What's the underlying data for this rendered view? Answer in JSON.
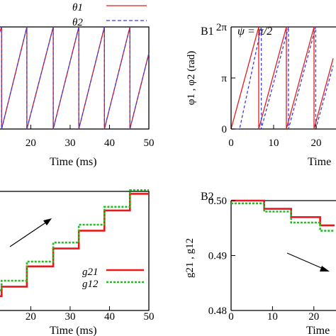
{
  "chart_data": [
    {
      "type": "line",
      "panel": "A1",
      "title": "",
      "xlabel": "Time (ms)",
      "ylabel": "",
      "xlim": [
        12,
        50
      ],
      "ylim": [
        0,
        6.2832
      ],
      "xticks": [
        20,
        30,
        40,
        50
      ],
      "legend": "top-right",
      "series": [
        {
          "name": "θ1",
          "color": "#e41a1c",
          "style": "solid",
          "x": [
            12,
            12.6,
            12.6,
            19,
            19,
            25.7,
            25.7,
            32.2,
            32.2,
            38.7,
            38.7,
            45.2,
            45.2,
            50
          ],
          "y": [
            5.9,
            6.2832,
            0,
            6.2832,
            0,
            6.2832,
            0,
            6.2832,
            0,
            6.2832,
            0,
            6.2832,
            0,
            4.66
          ]
        },
        {
          "name": "θ2",
          "color": "#3b3bdb",
          "style": "dashed",
          "x": [
            12,
            12.6,
            12.6,
            19,
            19,
            25.7,
            25.7,
            32.2,
            32.2,
            38.7,
            38.7,
            45.2,
            45.2,
            50
          ],
          "y": [
            5.9,
            6.2832,
            0,
            6.2832,
            0,
            6.2832,
            0,
            6.2832,
            0,
            6.2832,
            0,
            6.2832,
            0,
            4.66
          ]
        }
      ]
    },
    {
      "type": "line",
      "panel": "B1",
      "label": "B1",
      "title": "ψ = π/2",
      "xlabel": "Time",
      "ylabel": "φ1 , φ2 (rad)",
      "xlim": [
        0,
        24
      ],
      "ylim": [
        0,
        6.2832
      ],
      "xticks": [
        0,
        10,
        20
      ],
      "xtick_labels": [
        "0",
        "10",
        "20"
      ],
      "yticks": [
        0,
        3.1416,
        6.2832
      ],
      "ytick_labels": [
        "0",
        "π",
        "2π"
      ],
      "series": [
        {
          "name": "φ1",
          "color": "#e41a1c",
          "style": "solid",
          "x": [
            0,
            6.5,
            6.5,
            13,
            13,
            19.5,
            19.5,
            24
          ],
          "y": [
            0,
            6.2832,
            0,
            6.2832,
            0,
            6.2832,
            0,
            4.35
          ]
        },
        {
          "name": "φ2",
          "color": "#3b3bdb",
          "style": "dashed",
          "x": [
            0,
            2,
            7.1,
            7.1,
            13.5,
            13.5,
            19.9,
            19.9,
            24
          ],
          "y": [
            0,
            0,
            6.2832,
            0,
            6.2832,
            0,
            6.2832,
            0,
            3.9
          ]
        }
      ]
    },
    {
      "type": "line",
      "panel": "A2",
      "title": "",
      "xlabel": "Time (ms)",
      "ylabel": "",
      "xlim": [
        12,
        50
      ],
      "ylim": [
        0,
        1
      ],
      "xticks": [
        20,
        30,
        40,
        50
      ],
      "legend": "bottom-right",
      "series": [
        {
          "name": "g21",
          "color": "#e41a1c",
          "style": "solid",
          "x": [
            12,
            12.6,
            12.6,
            19,
            19,
            25.7,
            25.7,
            32.2,
            32.2,
            38.7,
            38.7,
            45.2,
            45.2,
            50
          ],
          "y": [
            0.12,
            0.12,
            0.2,
            0.2,
            0.37,
            0.37,
            0.52,
            0.52,
            0.67,
            0.67,
            0.84,
            0.84,
            0.98,
            0.98
          ]
        },
        {
          "name": "g12",
          "color": "#22bb22",
          "style": "dotted",
          "x": [
            12,
            12.6,
            12.6,
            19,
            19,
            25.7,
            25.7,
            32.2,
            32.2,
            38.7,
            38.7,
            45.2,
            45.2,
            50
          ],
          "y": [
            0.17,
            0.17,
            0.25,
            0.25,
            0.41,
            0.41,
            0.57,
            0.57,
            0.72,
            0.72,
            0.87,
            0.87,
            1.01,
            1.01
          ]
        }
      ]
    },
    {
      "type": "line",
      "panel": "B2",
      "label": "B2",
      "title": "",
      "xlabel": "Time",
      "ylabel": "g21 , g12",
      "xlim": [
        0,
        25
      ],
      "ylim": [
        0.48,
        0.5
      ],
      "xticks": [
        0,
        10,
        20
      ],
      "xtick_labels": [
        "0",
        "10",
        "20"
      ],
      "yticks": [
        0.48,
        0.49,
        0.5
      ],
      "ytick_labels": [
        "0.48",
        "0.49",
        "0.50"
      ],
      "series": [
        {
          "name": "g21",
          "color": "#e41a1c",
          "style": "solid",
          "x": [
            0,
            8,
            8,
            14.5,
            14.5,
            21.5,
            21.5,
            25
          ],
          "y": [
            0.5,
            0.5,
            0.4985,
            0.4985,
            0.497,
            0.497,
            0.4955,
            0.4955
          ]
        },
        {
          "name": "g12",
          "color": "#22bb22",
          "style": "dotted",
          "x": [
            0,
            8,
            8,
            14.5,
            14.5,
            21.5,
            21.5,
            25
          ],
          "y": [
            0.4995,
            0.4995,
            0.498,
            0.498,
            0.496,
            0.496,
            0.4945,
            0.4945
          ]
        }
      ]
    }
  ],
  "colors": {
    "red": "#e41a1c",
    "blue": "#3b3bdb",
    "green": "#22bb22",
    "axis": "#000000"
  }
}
